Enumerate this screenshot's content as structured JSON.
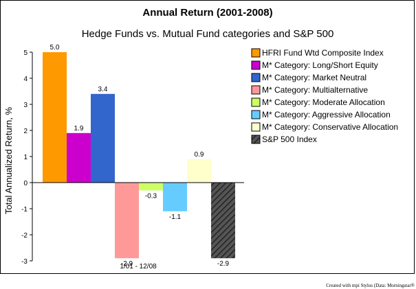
{
  "chart_data": {
    "type": "bar",
    "title": "Annual Return (2001-2008)",
    "subtitle": "Hedge Funds vs. Mutual Fund categories and S&P 500",
    "xlabel": "1/01 - 12/08",
    "ylabel": "Total Annualized Return, %",
    "ylim": [
      -3,
      5
    ],
    "yticks": [
      "5",
      "4",
      "3",
      "2",
      "1",
      "0",
      "-1",
      "-2",
      "-3"
    ],
    "legend_position": "right",
    "grid": false,
    "series": [
      {
        "name": "HFRI Fund Wtd Composite Index",
        "value": 5.0,
        "label": "5.0",
        "color": "#FF9900",
        "pattern": "solid"
      },
      {
        "name": "M* Category: Long/Short Equity",
        "value": 1.9,
        "label": "1.9",
        "color": "#CC00CC",
        "pattern": "solid"
      },
      {
        "name": "M* Category: Market Neutral",
        "value": 3.4,
        "label": "3.4",
        "color": "#3366CC",
        "pattern": "solid"
      },
      {
        "name": "M* Category: Multialternative",
        "value": -2.9,
        "label": "-2.9",
        "color": "#FF9999",
        "pattern": "solid"
      },
      {
        "name": "M* Category: Moderate Allocation",
        "value": -0.3,
        "label": "-0.3",
        "color": "#CCFF66",
        "pattern": "solid"
      },
      {
        "name": "M* Category:  Aggressive Allocation",
        "value": -1.1,
        "label": "-1.1",
        "color": "#66CCFF",
        "pattern": "solid"
      },
      {
        "name": "M* Category: Conservative Allocation",
        "value": 0.9,
        "label": "0.9",
        "color": "#FFFFCC",
        "pattern": "solid"
      },
      {
        "name": "S&P 500 Index",
        "value": -2.9,
        "label": "-2.9",
        "color": "#555555",
        "pattern": "hatched"
      }
    ]
  },
  "credit": "Created with mpi Stylus (Data: Morningstar®"
}
